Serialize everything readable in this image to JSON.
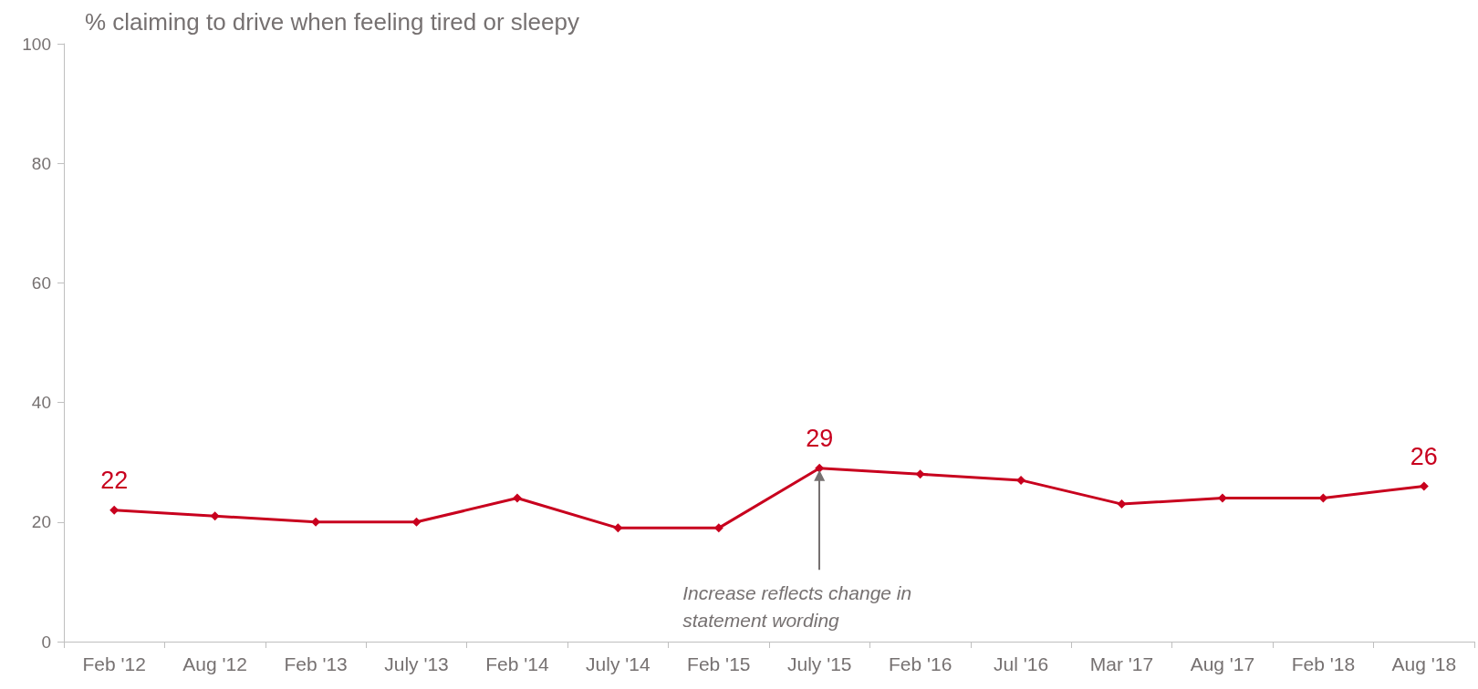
{
  "chart_data": {
    "type": "line",
    "title": "% claiming to drive when feeling tired or sleepy",
    "categories": [
      "Feb '12",
      "Aug '12",
      "Feb '13",
      "July '13",
      "Feb '14",
      "July '14",
      "Feb '15",
      "July '15",
      "Feb '16",
      "Jul '16",
      "Mar '17",
      "Aug '17",
      "Feb '18",
      "Aug '18"
    ],
    "series": [
      {
        "color": "#c8001e",
        "values": [
          22,
          21,
          20,
          20,
          24,
          19,
          19,
          29,
          28,
          27,
          23,
          24,
          24,
          26
        ],
        "value_labels": [
          "22",
          null,
          null,
          null,
          null,
          null,
          null,
          "29",
          null,
          null,
          null,
          null,
          null,
          "26"
        ]
      }
    ],
    "ylim": [
      0,
      100
    ],
    "yticks": [
      0,
      20,
      40,
      60,
      80,
      100
    ],
    "grid": false,
    "marker": "diamond",
    "line_style": "solid",
    "annotations": [
      {
        "text": "Increase reflects change in statement wording",
        "x": "July '15",
        "y": 29
      }
    ]
  }
}
